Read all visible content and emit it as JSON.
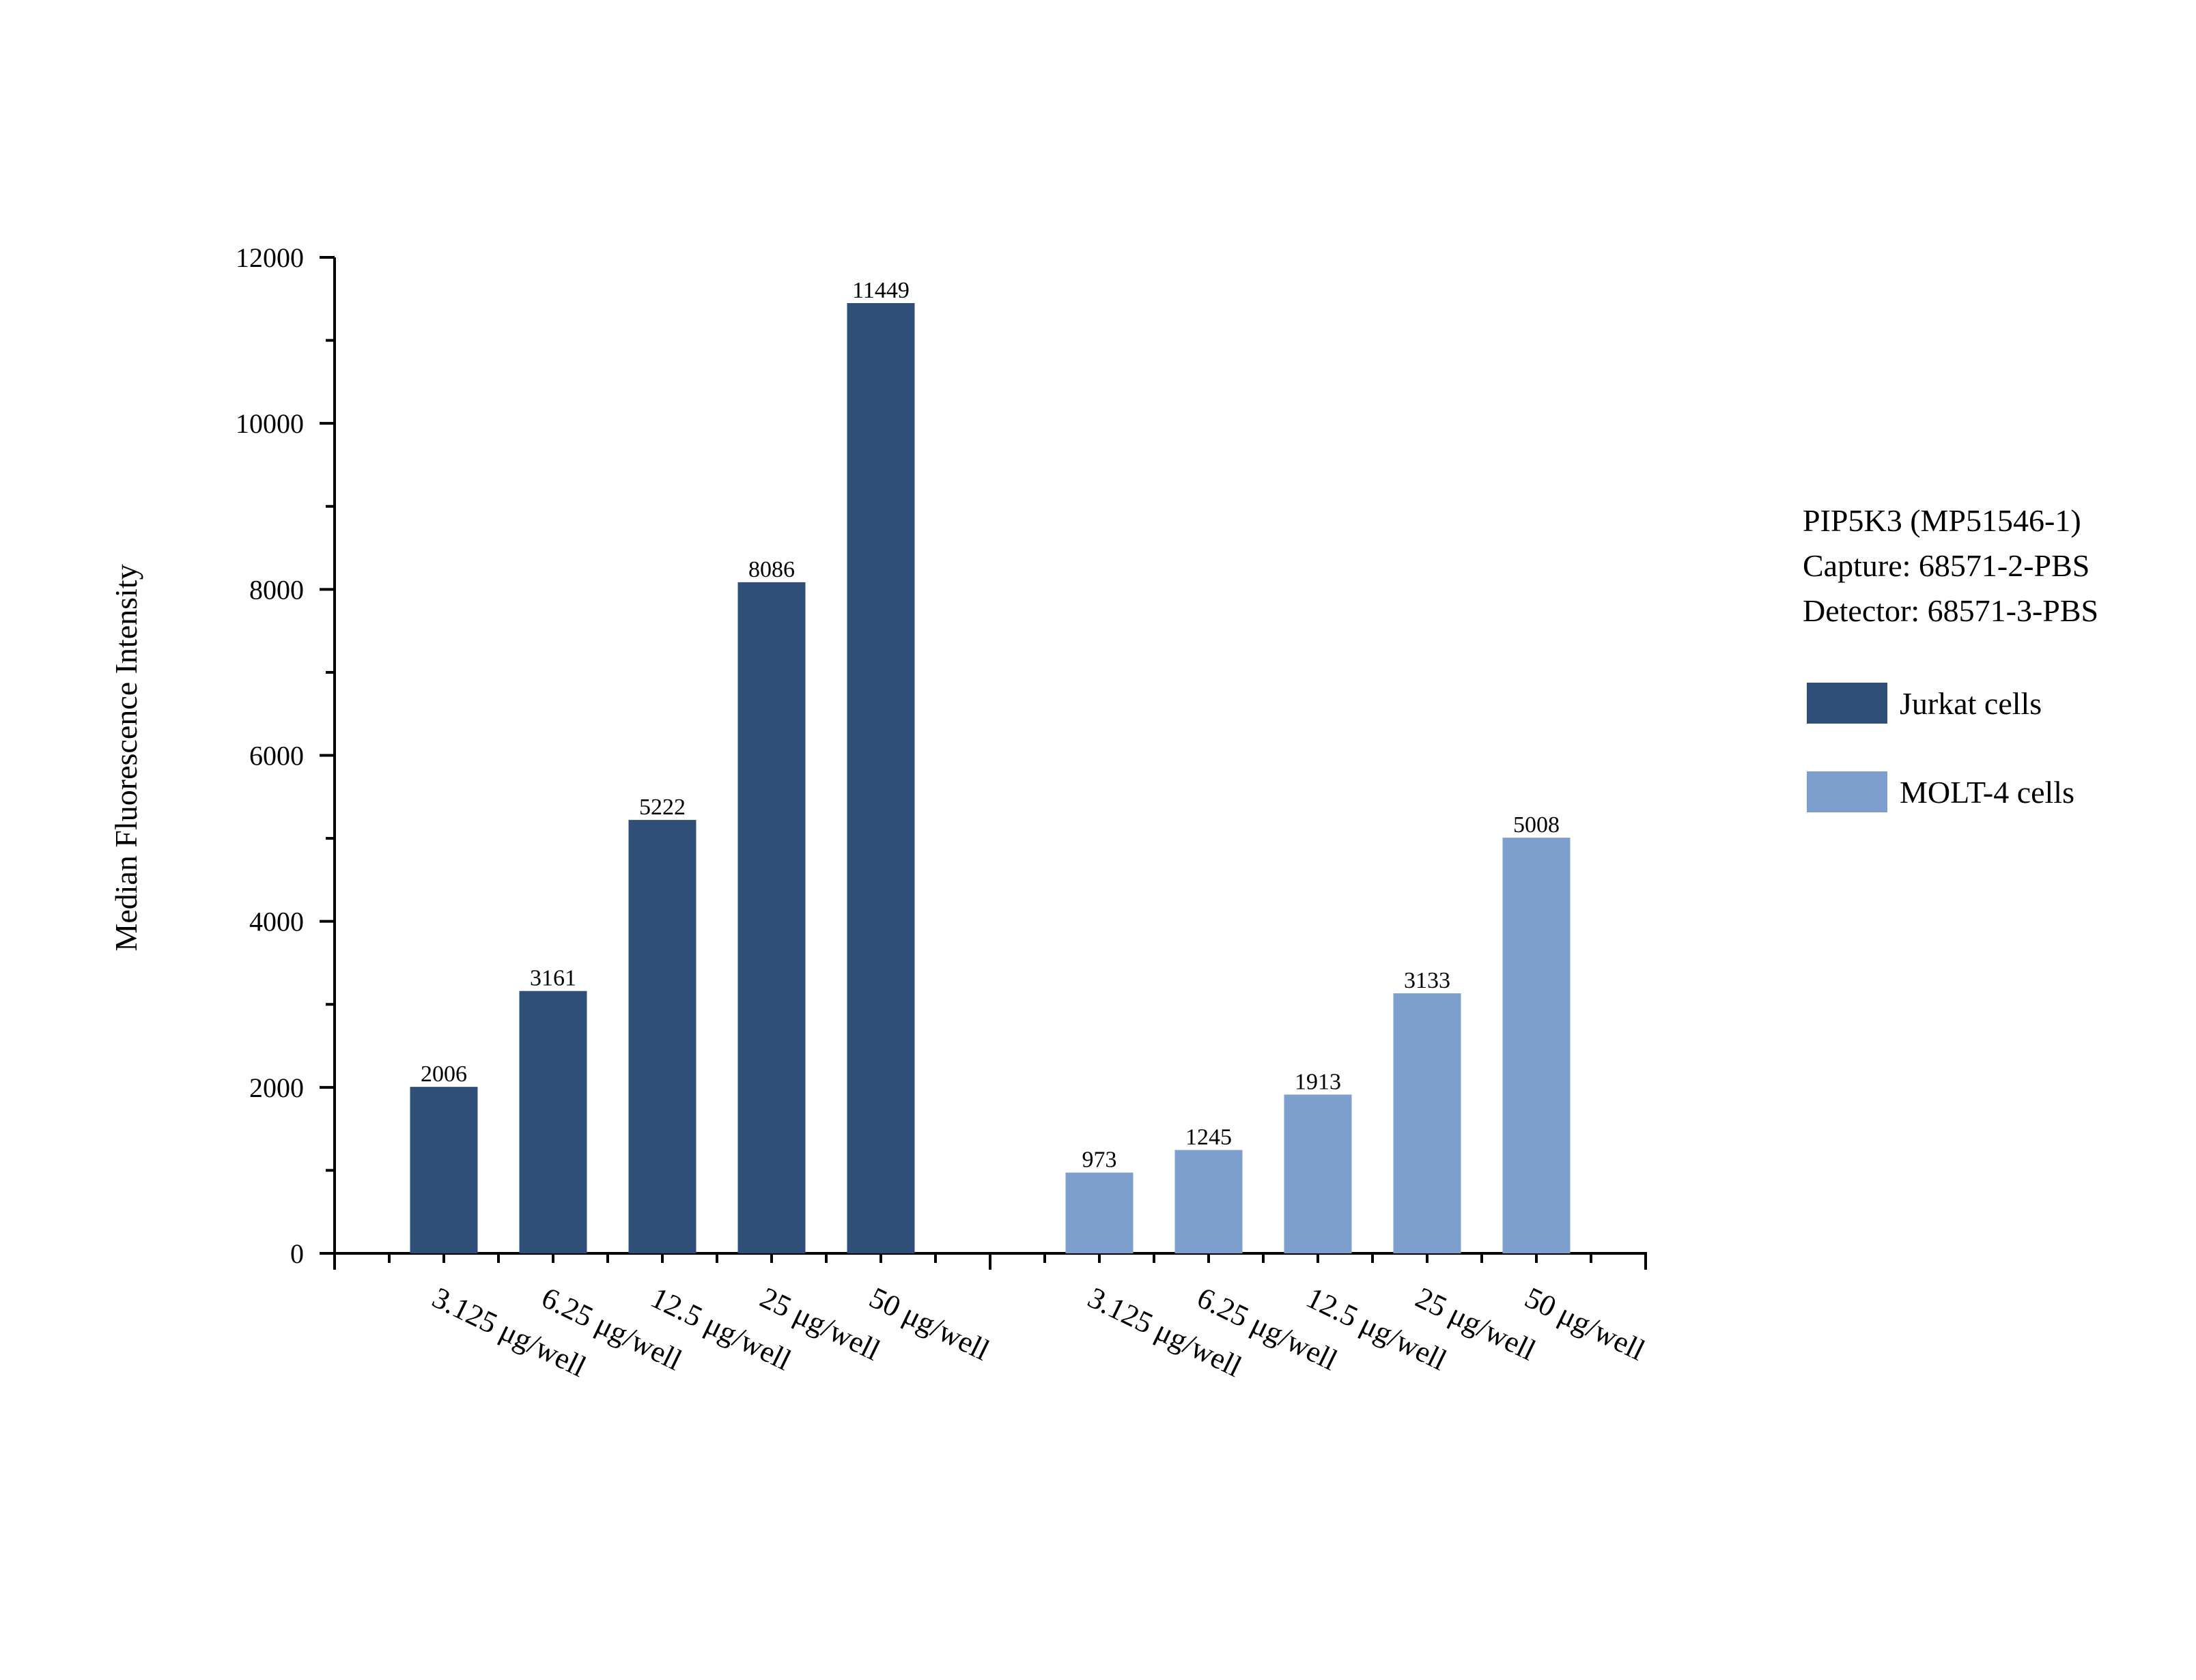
{
  "chart_data": {
    "type": "bar",
    "title": "",
    "xlabel": "",
    "ylabel": "Median Fluorescence Intensity",
    "ylim": [
      0,
      12000
    ],
    "yticks": [
      0,
      2000,
      4000,
      6000,
      8000,
      10000,
      12000
    ],
    "grid": false,
    "legend_position": "right",
    "info_text": [
      "PIP5K3 (MP51546-1)",
      "Capture: 68571-2-PBS",
      "Detector: 68571-3-PBS"
    ],
    "groups": [
      {
        "name": "Jurkat cells",
        "color": "#2f4f78",
        "categories": [
          "3.125 μg/well",
          "6.25 μg/well",
          "12.5 μg/well",
          "25 μg/well",
          "50 μg/well"
        ],
        "values": [
          2006,
          3161,
          5222,
          8086,
          11449
        ]
      },
      {
        "name": "MOLT-4 cells",
        "color": "#7e9fce",
        "categories": [
          "3.125 μg/well",
          "6.25 μg/well",
          "12.5 μg/well",
          "25 μg/well",
          "50 μg/well"
        ],
        "values": [
          973,
          1245,
          1913,
          3133,
          5008
        ]
      }
    ]
  }
}
